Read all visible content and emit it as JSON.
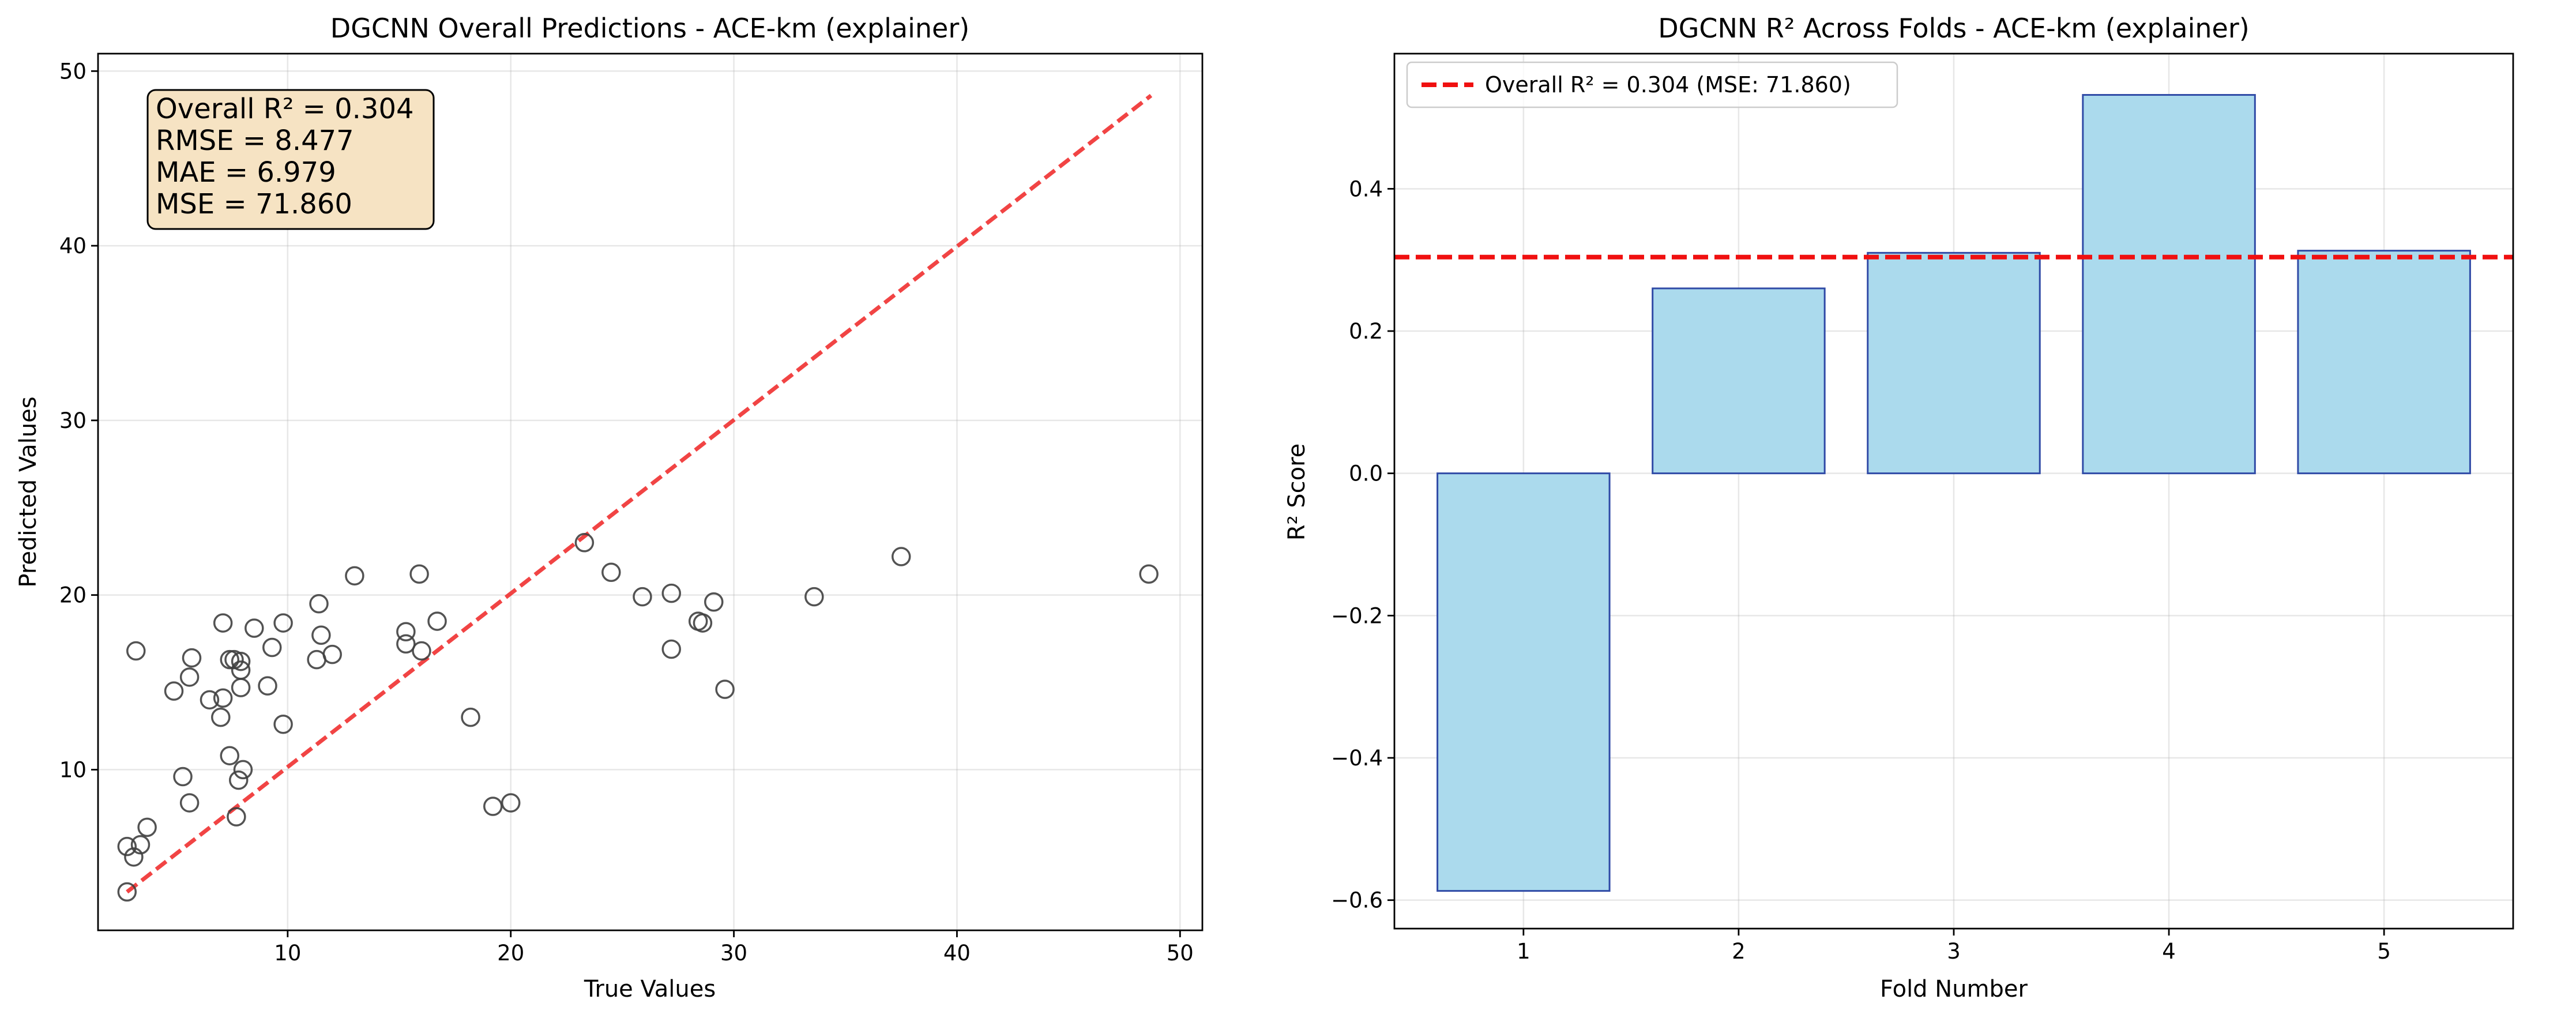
{
  "chart_data": [
    {
      "type": "scatter",
      "title": "DGCNN Overall Predictions - ACE-km (explainer)",
      "xlabel": "True Values",
      "ylabel": "Predicted Values",
      "xlim": [
        1.5,
        51.0
      ],
      "ylim": [
        0.8,
        51.0
      ],
      "xticks": [
        10,
        20,
        30,
        40,
        50
      ],
      "yticks": [
        10,
        20,
        30,
        40,
        50
      ],
      "grid": true,
      "point_edge_color": "#404040",
      "reference_line": {
        "x": [
          2.8,
          48.7
        ],
        "y": [
          3.0,
          48.6
        ],
        "color": "#f03030",
        "style": "dashed"
      },
      "stats": {
        "r2": "Overall R² = 0.304",
        "rmse": "RMSE = 8.477",
        "mae": "MAE = 6.979",
        "mse": "MSE = 71.860"
      },
      "stats_box_color": "#f6e3c3",
      "points": [
        {
          "x": 2.8,
          "y": 3.0
        },
        {
          "x": 2.8,
          "y": 5.6
        },
        {
          "x": 3.1,
          "y": 5.0
        },
        {
          "x": 3.4,
          "y": 5.7
        },
        {
          "x": 3.7,
          "y": 6.7
        },
        {
          "x": 3.2,
          "y": 16.8
        },
        {
          "x": 4.9,
          "y": 14.5
        },
        {
          "x": 5.3,
          "y": 9.6
        },
        {
          "x": 5.6,
          "y": 8.1
        },
        {
          "x": 5.6,
          "y": 15.3
        },
        {
          "x": 5.7,
          "y": 16.4
        },
        {
          "x": 6.5,
          "y": 14.0
        },
        {
          "x": 7.0,
          "y": 13.0
        },
        {
          "x": 7.1,
          "y": 18.4
        },
        {
          "x": 7.1,
          "y": 14.1
        },
        {
          "x": 7.4,
          "y": 10.8
        },
        {
          "x": 7.4,
          "y": 16.3
        },
        {
          "x": 7.6,
          "y": 16.3
        },
        {
          "x": 7.7,
          "y": 7.3
        },
        {
          "x": 7.8,
          "y": 9.4
        },
        {
          "x": 7.9,
          "y": 14.7
        },
        {
          "x": 7.9,
          "y": 15.7
        },
        {
          "x": 7.9,
          "y": 16.2
        },
        {
          "x": 8.0,
          "y": 10.0
        },
        {
          "x": 8.5,
          "y": 18.1
        },
        {
          "x": 9.1,
          "y": 14.8
        },
        {
          "x": 9.3,
          "y": 17.0
        },
        {
          "x": 9.8,
          "y": 12.6
        },
        {
          "x": 9.8,
          "y": 18.4
        },
        {
          "x": 11.3,
          "y": 16.3
        },
        {
          "x": 11.4,
          "y": 19.5
        },
        {
          "x": 11.5,
          "y": 17.7
        },
        {
          "x": 12.0,
          "y": 16.6
        },
        {
          "x": 13.0,
          "y": 21.1
        },
        {
          "x": 15.3,
          "y": 17.9
        },
        {
          "x": 15.3,
          "y": 17.2
        },
        {
          "x": 15.9,
          "y": 21.2
        },
        {
          "x": 16.0,
          "y": 16.8
        },
        {
          "x": 16.7,
          "y": 18.5
        },
        {
          "x": 18.2,
          "y": 13.0
        },
        {
          "x": 19.2,
          "y": 7.9
        },
        {
          "x": 20.0,
          "y": 8.1
        },
        {
          "x": 23.3,
          "y": 23.0
        },
        {
          "x": 24.5,
          "y": 21.3
        },
        {
          "x": 25.9,
          "y": 19.9
        },
        {
          "x": 27.2,
          "y": 20.1
        },
        {
          "x": 27.2,
          "y": 16.9
        },
        {
          "x": 28.4,
          "y": 18.5
        },
        {
          "x": 28.6,
          "y": 18.4
        },
        {
          "x": 29.1,
          "y": 19.6
        },
        {
          "x": 29.6,
          "y": 14.6
        },
        {
          "x": 33.6,
          "y": 19.9
        },
        {
          "x": 37.5,
          "y": 22.2
        },
        {
          "x": 48.6,
          "y": 21.2
        }
      ]
    },
    {
      "type": "bar",
      "title": "DGCNN R² Across Folds - ACE-km (explainer)",
      "xlabel": "Fold Number",
      "ylabel": "R² Score",
      "categories": [
        "1",
        "2",
        "3",
        "4",
        "5"
      ],
      "values": [
        -0.587,
        0.26,
        0.31,
        0.532,
        0.313
      ],
      "xlim": [
        0.4,
        5.6
      ],
      "ylim": [
        -0.64,
        0.59
      ],
      "yticks": [
        -0.6,
        -0.4,
        -0.2,
        0.0,
        0.2,
        0.4
      ],
      "ytick_labels": [
        "−0.6",
        "−0.4",
        "−0.2",
        "0.0",
        "0.2",
        "0.4"
      ],
      "grid": true,
      "bar_color": "#abdaed",
      "bar_edge_color": "#2f4aa6",
      "reference_line": {
        "y": 0.304,
        "color": "#f01010",
        "style": "dashed"
      },
      "legend": {
        "label": "Overall R² = 0.304 (MSE: 71.860)",
        "placement": "upper-left"
      }
    }
  ]
}
